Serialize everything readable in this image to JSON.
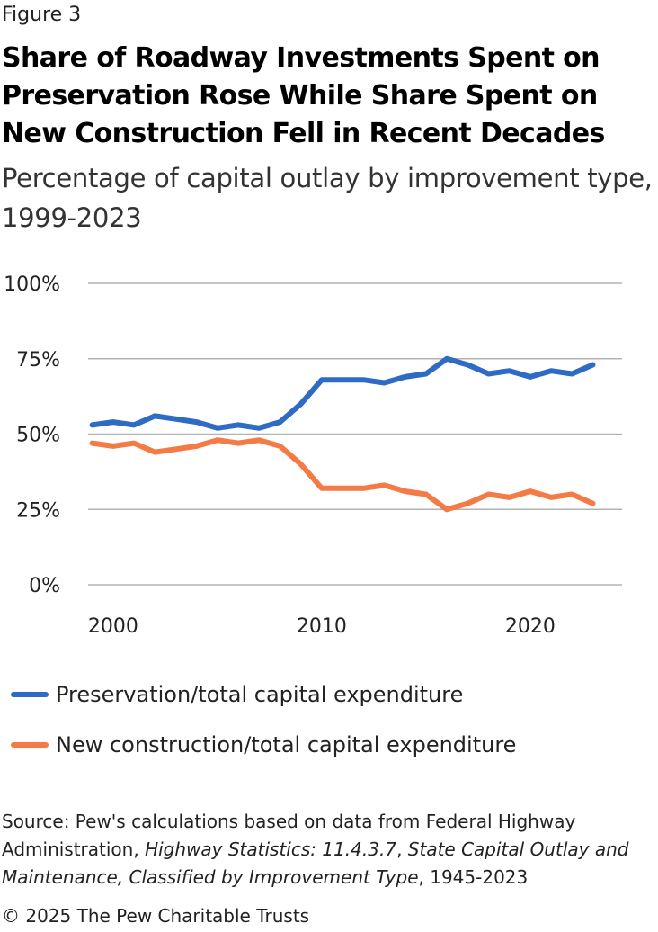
{
  "figure_label": "Figure 3",
  "source": {
    "prefix": "Source: Pew's calculations based on data from Federal Highway Administration, ",
    "italic1": "Highway Statistics: 11.4.3.7",
    "sep": ", ",
    "italic2": "State Capital Outlay and Maintenance, Classified by Improvement Type",
    "suffix": ", 1945-2023"
  },
  "copyright": "© 2025 The Pew Charitable Trusts",
  "chart_data": {
    "type": "line",
    "title": "Share of Roadway Investments Spent on Preservation Rose While Share Spent on New Construction Fell in Recent Decades",
    "subtitle": "Percentage of capital outlay by improvement type, 1999-2023",
    "xlabel": "",
    "ylabel": "",
    "x": [
      1999,
      2000,
      2001,
      2002,
      2003,
      2004,
      2005,
      2006,
      2007,
      2008,
      2009,
      2010,
      2011,
      2012,
      2013,
      2014,
      2015,
      2016,
      2017,
      2018,
      2019,
      2020,
      2021,
      2022,
      2023
    ],
    "xlim": [
      1998.8,
      2024.4
    ],
    "xticks": [
      2000,
      2010,
      2020
    ],
    "ylim": [
      0,
      100
    ],
    "yticks": [
      0,
      25,
      50,
      75,
      100
    ],
    "ytick_labels": [
      "0%",
      "25%",
      "50%",
      "75%",
      "100%"
    ],
    "grid": true,
    "legend_position": "bottom",
    "series": [
      {
        "name": "Preservation/total capital expenditure",
        "color": "#2e6bc4",
        "values": [
          53,
          54,
          53,
          56,
          55,
          54,
          52,
          53,
          52,
          54,
          60,
          68,
          68,
          68,
          67,
          69,
          70,
          75,
          73,
          70,
          71,
          69,
          71,
          70,
          73
        ]
      },
      {
        "name": "New construction/total capital expenditure",
        "color": "#f47b45",
        "values": [
          47,
          46,
          47,
          44,
          45,
          46,
          48,
          47,
          48,
          46,
          40,
          32,
          32,
          32,
          33,
          31,
          30,
          25,
          27,
          30,
          29,
          31,
          29,
          30,
          27
        ]
      }
    ]
  }
}
